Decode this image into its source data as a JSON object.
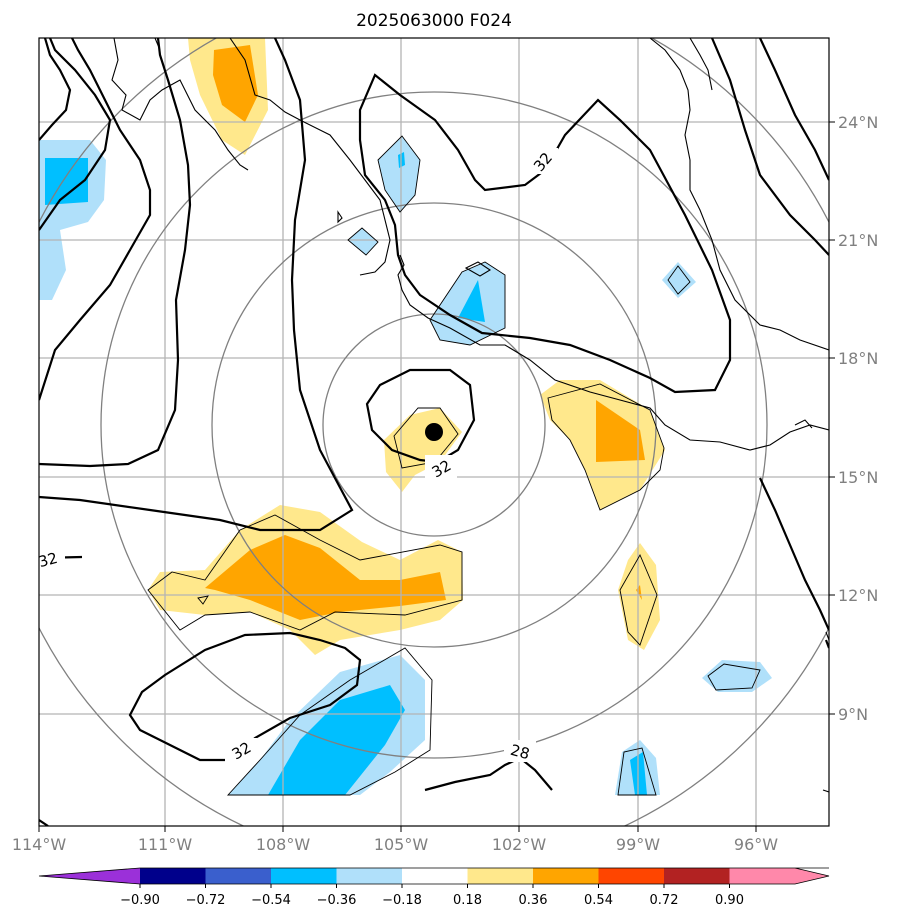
{
  "title": "2025063000 F024",
  "map": {
    "lat_labels": [
      "24°N",
      "21°N",
      "18°N",
      "15°N",
      "12°N",
      "9°N"
    ],
    "lon_labels": [
      "114°W",
      "111°W",
      "108°W",
      "105°W",
      "102°W",
      "99°W",
      "96°W"
    ],
    "contour_labels": [
      "32",
      "32",
      "32",
      "32",
      "28"
    ],
    "storm_center": {
      "lon": -104.0,
      "lat": 16.1
    }
  },
  "colorbar": {
    "ticks": [
      "−0.90",
      "−0.72",
      "−0.54",
      "−0.36",
      "−0.18",
      "0.18",
      "0.36",
      "0.54",
      "0.72",
      "0.90"
    ],
    "colors": [
      "#9b30d9",
      "#00008b",
      "#3a5fcd",
      "#00bfff",
      "#b0e0fa",
      "#ffffff",
      "#ffe88c",
      "#ffa500",
      "#ff4500",
      "#b22222",
      "#ff88aa"
    ]
  },
  "colors": {
    "grid": "#b4b4b4",
    "rings": "#808080",
    "coast": "#000000",
    "label_gray": "#808080"
  }
}
